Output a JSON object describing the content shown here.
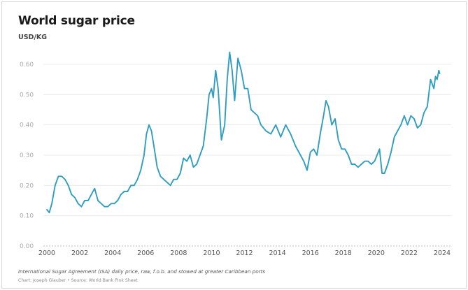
{
  "chart_data": {
    "type": "line",
    "title": "World sugar price",
    "subtitle": "USD/KG",
    "xlabel": "",
    "ylabel": "",
    "xlim": [
      2000,
      2024
    ],
    "ylim": [
      0,
      0.6
    ],
    "y_ticks": [
      "0.00",
      "0.10",
      "0.20",
      "0.30",
      "0.40",
      "0.50",
      "0.60"
    ],
    "x_ticks": [
      "2000",
      "2002",
      "2004",
      "2006",
      "2008",
      "2010",
      "2012",
      "2014",
      "2016",
      "2018",
      "2020",
      "2022",
      "2024"
    ],
    "grid": "horizontal",
    "legend": "none",
    "line_color": "#2f9ec0",
    "series": [
      {
        "x": [
          2000.0,
          2000.15,
          2000.3,
          2000.5,
          2000.7,
          2000.9,
          2001.1,
          2001.3,
          2001.5,
          2001.7,
          2001.9,
          2002.1,
          2002.3,
          2002.5,
          2002.7,
          2002.9,
          2003.1,
          2003.3,
          2003.5,
          2003.7,
          2003.9,
          2004.1,
          2004.3,
          2004.5,
          2004.7,
          2004.9,
          2005.1,
          2005.3,
          2005.5,
          2005.7,
          2005.9,
          2006.05,
          2006.2,
          2006.35,
          2006.5,
          2006.7,
          2006.9,
          2007.1,
          2007.3,
          2007.5,
          2007.7,
          2007.9,
          2008.1,
          2008.3,
          2008.5,
          2008.7,
          2008.9,
          2009.1,
          2009.3,
          2009.5,
          2009.7,
          2009.85,
          2010.0,
          2010.1,
          2010.25,
          2010.4,
          2010.6,
          2010.8,
          2010.95,
          2011.1,
          2011.25,
          2011.4,
          2011.6,
          2011.8,
          2012.0,
          2012.2,
          2012.4,
          2012.6,
          2012.8,
          2013.0,
          2013.3,
          2013.6,
          2013.9,
          2014.2,
          2014.5,
          2014.8,
          2015.1,
          2015.4,
          2015.6,
          2015.8,
          2016.0,
          2016.2,
          2016.4,
          2016.6,
          2016.8,
          2016.95,
          2017.1,
          2017.3,
          2017.5,
          2017.7,
          2017.9,
          2018.1,
          2018.3,
          2018.5,
          2018.7,
          2018.9,
          2019.1,
          2019.3,
          2019.5,
          2019.7,
          2019.9,
          2020.05,
          2020.2,
          2020.35,
          2020.5,
          2020.7,
          2020.9,
          2021.1,
          2021.3,
          2021.5,
          2021.7,
          2021.9,
          2022.1,
          2022.3,
          2022.5,
          2022.7,
          2022.9,
          2023.1,
          2023.3,
          2023.5,
          2023.6,
          2023.7,
          2023.8,
          2023.85
        ],
        "y": [
          0.12,
          0.11,
          0.14,
          0.2,
          0.23,
          0.23,
          0.22,
          0.2,
          0.17,
          0.16,
          0.14,
          0.13,
          0.15,
          0.15,
          0.17,
          0.19,
          0.15,
          0.14,
          0.13,
          0.13,
          0.14,
          0.14,
          0.15,
          0.17,
          0.18,
          0.18,
          0.2,
          0.2,
          0.22,
          0.25,
          0.3,
          0.37,
          0.4,
          0.38,
          0.33,
          0.26,
          0.23,
          0.22,
          0.21,
          0.2,
          0.22,
          0.22,
          0.24,
          0.29,
          0.28,
          0.3,
          0.26,
          0.27,
          0.3,
          0.33,
          0.42,
          0.5,
          0.52,
          0.49,
          0.58,
          0.52,
          0.35,
          0.4,
          0.55,
          0.64,
          0.58,
          0.48,
          0.62,
          0.58,
          0.52,
          0.52,
          0.45,
          0.44,
          0.43,
          0.4,
          0.38,
          0.37,
          0.4,
          0.36,
          0.4,
          0.37,
          0.33,
          0.3,
          0.28,
          0.25,
          0.31,
          0.32,
          0.3,
          0.37,
          0.43,
          0.48,
          0.46,
          0.4,
          0.42,
          0.35,
          0.32,
          0.32,
          0.3,
          0.27,
          0.27,
          0.26,
          0.27,
          0.28,
          0.28,
          0.27,
          0.28,
          0.3,
          0.32,
          0.24,
          0.24,
          0.27,
          0.31,
          0.36,
          0.38,
          0.4,
          0.43,
          0.4,
          0.43,
          0.42,
          0.39,
          0.4,
          0.44,
          0.46,
          0.55,
          0.52,
          0.56,
          0.55,
          0.58,
          0.57
        ]
      }
    ]
  },
  "footnote": "International Sugar Agreement (ISA) daily price, raw, f.o.b. and stowed at greater Caribbean ports",
  "credit": "Chart: Joseph Glauber • Source: World Bank Pink Sheet"
}
